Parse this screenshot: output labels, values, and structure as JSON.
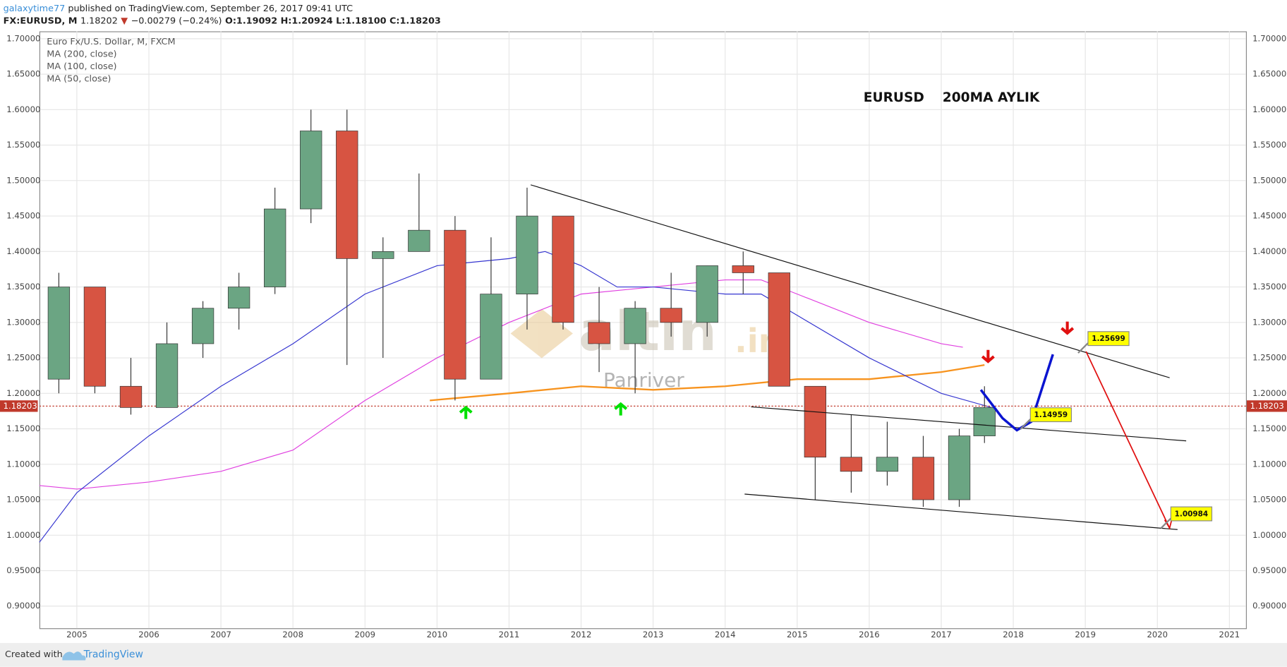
{
  "header": {
    "author": "galaxytime77",
    "published": "published on TradingView.com, September 26, 2017 09:41 UTC",
    "symbol": "FX:EURUSD, M",
    "last": "1.18202",
    "change": "−0.00279 (−0.24%)",
    "open": "O:1.19092",
    "high": "H:1.20924",
    "low": "L:1.18100",
    "close": "C:1.18203"
  },
  "legend": [
    "Euro Fx/U.S. Dollar, M, FXCM",
    "MA (200, close)",
    "MA (100, close)",
    "MA (50, close)"
  ],
  "watermark": {
    "brand": "altın",
    "domain": ".in",
    "name": "Panriver"
  },
  "footer": {
    "created": "Created with",
    "brand": "TradingView"
  },
  "chart_data": {
    "type": "candlestick",
    "title": "EURUSD    200MA AYLIK",
    "xlim": [
      2004.48,
      2021.23
    ],
    "xticks": [
      2005,
      2006,
      2007,
      2008,
      2009,
      2010,
      2011,
      2012,
      2013,
      2014,
      2015,
      2016,
      2017,
      2018,
      2019,
      2020,
      2021
    ],
    "ylim": [
      0.8688,
      1.7104
    ],
    "yticks": [
      {
        "value": 0.9,
        "label": "0.90000"
      },
      {
        "value": 0.95,
        "label": "0.95000"
      },
      {
        "value": 1.0,
        "label": "1.00000"
      },
      {
        "value": 1.05,
        "label": "1.05000"
      },
      {
        "value": 1.1,
        "label": "1.10000"
      },
      {
        "value": 1.15,
        "label": "1.15000"
      },
      {
        "value": 1.2,
        "label": "1.20000"
      },
      {
        "value": 1.25,
        "label": "1.25000"
      },
      {
        "value": 1.3,
        "label": "1.30000"
      },
      {
        "value": 1.35,
        "label": "1.35000"
      },
      {
        "value": 1.4,
        "label": "1.40000"
      },
      {
        "value": 1.45,
        "label": "1.45000"
      },
      {
        "value": 1.5,
        "label": "1.50000"
      },
      {
        "value": 1.55,
        "label": "1.55000"
      },
      {
        "value": 1.6,
        "label": "1.60000"
      },
      {
        "value": 1.65,
        "label": "1.65000"
      },
      {
        "value": 1.7,
        "label": "1.70000"
      }
    ],
    "grid": true,
    "up_color": "#6ba583",
    "down_color": "#d75442",
    "candles": {
      "x": [
        2004.75,
        2005.25,
        2005.75,
        2006.25,
        2006.75,
        2007.25,
        2007.75,
        2008.25,
        2008.75,
        2009.25,
        2009.75,
        2010.25,
        2010.75,
        2011.25,
        2011.75,
        2012.25,
        2012.75,
        2013.25,
        2013.75,
        2014.25,
        2014.75,
        2015.25,
        2015.75,
        2016.25,
        2016.75,
        2017.25,
        2017.6
      ],
      "open": [
        1.22,
        1.35,
        1.21,
        1.18,
        1.27,
        1.32,
        1.35,
        1.46,
        1.57,
        1.39,
        1.4,
        1.43,
        1.22,
        1.34,
        1.45,
        1.3,
        1.27,
        1.32,
        1.3,
        1.38,
        1.37,
        1.21,
        1.11,
        1.09,
        1.11,
        1.05,
        1.14
      ],
      "high": [
        1.37,
        1.35,
        1.25,
        1.3,
        1.33,
        1.37,
        1.49,
        1.6,
        1.6,
        1.42,
        1.51,
        1.45,
        1.42,
        1.49,
        1.45,
        1.35,
        1.33,
        1.37,
        1.38,
        1.4,
        1.37,
        1.21,
        1.17,
        1.16,
        1.14,
        1.15,
        1.21
      ],
      "low": [
        1.2,
        1.2,
        1.17,
        1.18,
        1.25,
        1.29,
        1.34,
        1.44,
        1.24,
        1.25,
        1.4,
        1.19,
        1.22,
        1.29,
        1.29,
        1.23,
        1.2,
        1.28,
        1.28,
        1.34,
        1.21,
        1.05,
        1.06,
        1.07,
        1.04,
        1.04,
        1.13
      ],
      "close": [
        1.35,
        1.21,
        1.18,
        1.27,
        1.32,
        1.35,
        1.46,
        1.57,
        1.39,
        1.4,
        1.43,
        1.22,
        1.34,
        1.45,
        1.3,
        1.27,
        1.32,
        1.3,
        1.38,
        1.37,
        1.21,
        1.11,
        1.09,
        1.11,
        1.05,
        1.14,
        1.18
      ]
    },
    "series": [
      {
        "name": "MA (200, close)",
        "color": "#f7931e",
        "x": [
          2009.9,
          2011,
          2012,
          2013,
          2014,
          2015,
          2016,
          2017,
          2017.6
        ],
        "values": [
          1.19,
          1.2,
          1.21,
          1.205,
          1.21,
          1.22,
          1.22,
          1.23,
          1.24
        ]
      },
      {
        "name": "MA (100, close)",
        "color": "#e040e0",
        "x": [
          2004.48,
          2005,
          2006,
          2007,
          2008,
          2009,
          2010,
          2011,
          2012,
          2013,
          2014,
          2014.5,
          2015,
          2016,
          2017,
          2017.3
        ],
        "values": [
          1.07,
          1.065,
          1.075,
          1.09,
          1.12,
          1.19,
          1.25,
          1.3,
          1.34,
          1.35,
          1.36,
          1.36,
          1.34,
          1.3,
          1.27,
          1.265
        ]
      },
      {
        "name": "MA (50, close)",
        "color": "#3535d0",
        "x": [
          2004.48,
          2005,
          2006,
          2007,
          2008,
          2009,
          2010,
          2011,
          2011.5,
          2012,
          2012.5,
          2013,
          2014,
          2014.5,
          2015,
          2016,
          2017,
          2017.7
        ],
        "values": [
          0.99,
          1.06,
          1.14,
          1.21,
          1.27,
          1.34,
          1.38,
          1.39,
          1.4,
          1.38,
          1.35,
          1.35,
          1.34,
          1.34,
          1.31,
          1.25,
          1.2,
          1.18
        ]
      }
    ],
    "last_price": {
      "value": 1.18203,
      "label": "1.18203",
      "color": "#c0392b"
    },
    "trendlines": [
      {
        "x": [
          2011.3,
          2020.17
        ],
        "values": [
          1.494,
          1.222
        ]
      },
      {
        "x": [
          2014.36,
          2020.4
        ],
        "values": [
          1.181,
          1.133
        ]
      },
      {
        "x": [
          2014.27,
          2020.28
        ],
        "values": [
          1.058,
          1.008
        ]
      }
    ],
    "projection": {
      "color": "#0a14d0",
      "x": [
        2017.55,
        2017.85,
        2018.05,
        2018.25,
        2018.55
      ],
      "values": [
        1.205,
        1.165,
        1.148,
        1.16,
        1.255
      ]
    },
    "target_arrow": {
      "color": "#e01010",
      "x": [
        2019.01,
        2020.17
      ],
      "values": [
        1.259,
        1.01
      ]
    },
    "callouts": [
      {
        "x": 2018.9,
        "value": 1.25699
      },
      {
        "x": 2018.1,
        "value": 1.14959
      },
      {
        "x": 2020.05,
        "value": 1.00984
      }
    ],
    "up_arrows": {
      "color": "#00e000",
      "x": [
        2010.4,
        2012.55
      ],
      "values": [
        1.18,
        1.185
      ]
    },
    "down_arrows": {
      "color": "#e01010",
      "x": [
        2017.65,
        2018.75
      ],
      "values": [
        1.245,
        1.285
      ]
    }
  }
}
